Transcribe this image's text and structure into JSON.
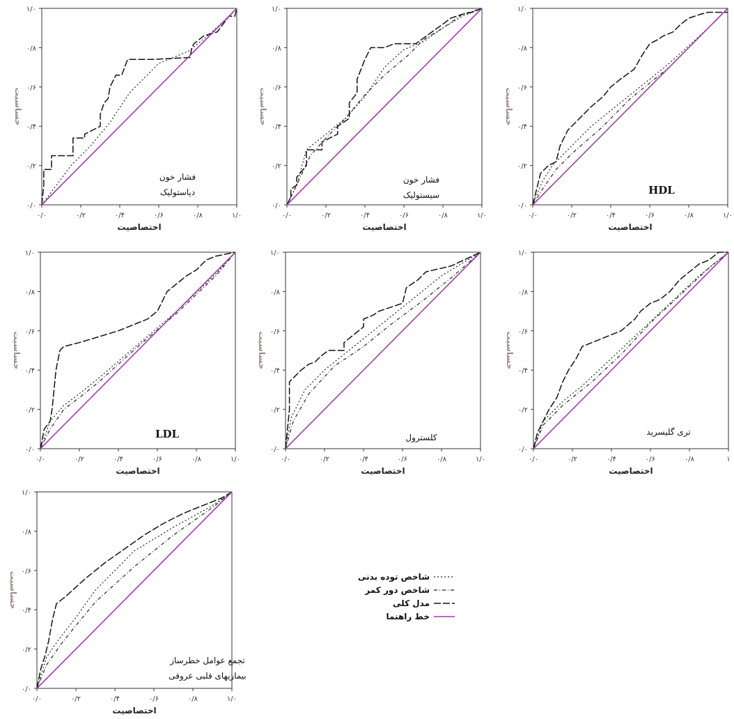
{
  "chart_data": [
    {
      "type": "line",
      "title": [
        "فشار خون",
        "دیاستولیک"
      ],
      "xlabel": "اختصاصیت",
      "ylabel": "حساسیت",
      "xticks": [
        "۰/۰",
        "۰/۲",
        "۰/۴",
        "۰/۶",
        "۰/۸",
        "۱/۰"
      ],
      "yticks": [
        "۰/۰",
        "۰/۲",
        "۰/۴",
        "۰/۶",
        "۰/۸",
        "۱/۰"
      ],
      "xlim": [
        0,
        1
      ],
      "ylim": [
        0,
        1
      ],
      "series": [
        {
          "key": "bmi",
          "x": [
            0,
            0.15,
            0.25,
            0.35,
            0.45,
            0.6,
            0.75,
            0.85,
            0.95,
            1
          ],
          "y": [
            0,
            0.2,
            0.3,
            0.42,
            0.57,
            0.72,
            0.78,
            0.86,
            0.95,
            1
          ]
        },
        {
          "key": "waist",
          "x": [
            0,
            0.2,
            0.4,
            0.6,
            0.8,
            1
          ],
          "y": [
            0,
            0.2,
            0.4,
            0.6,
            0.8,
            1
          ]
        },
        {
          "key": "model",
          "x": [
            0,
            0.01,
            0.01,
            0.05,
            0.05,
            0.16,
            0.16,
            0.22,
            0.22,
            0.3,
            0.3,
            0.32,
            0.34,
            0.35,
            0.36,
            0.38,
            0.41,
            0.44,
            0.44,
            0.57,
            0.57,
            0.76,
            0.77,
            0.78,
            0.83,
            0.9,
            0.96,
            0.99,
            1
          ],
          "y": [
            0,
            0.1,
            0.18,
            0.18,
            0.25,
            0.25,
            0.34,
            0.34,
            0.36,
            0.4,
            0.46,
            0.52,
            0.54,
            0.6,
            0.62,
            0.66,
            0.66,
            0.74,
            0.74,
            0.74,
            0.74,
            0.75,
            0.8,
            0.82,
            0.86,
            0.88,
            0.96,
            0.96,
            1
          ]
        },
        {
          "key": "ref",
          "x": [
            0,
            1
          ],
          "y": [
            0,
            1
          ]
        }
      ]
    },
    {
      "type": "line",
      "title": [
        "فشار خون",
        "سیستولیک"
      ],
      "xlabel": "اختصاصیت",
      "ylabel": "حساسیت",
      "xticks": [
        "۰/۰",
        "۰/۲",
        "۰/۴",
        "۰/۶",
        "۰/۸",
        "۱/۰"
      ],
      "yticks": [
        "۰/۰",
        "۰/۲",
        "۰/۴",
        "۰/۶",
        "۰/۸",
        "۱/۰"
      ],
      "xlim": [
        0,
        1
      ],
      "ylim": [
        0,
        1
      ],
      "series": [
        {
          "key": "bmi",
          "x": [
            0,
            0.05,
            0.1,
            0.2,
            0.3,
            0.4,
            0.5,
            0.6,
            0.7,
            0.8,
            0.9,
            1
          ],
          "y": [
            0,
            0.1,
            0.28,
            0.36,
            0.44,
            0.55,
            0.7,
            0.79,
            0.83,
            0.9,
            0.96,
            1
          ]
        },
        {
          "key": "waist",
          "x": [
            0,
            0.05,
            0.12,
            0.2,
            0.3,
            0.4,
            0.5,
            0.62,
            0.7,
            0.8,
            0.9,
            1
          ],
          "y": [
            0,
            0.1,
            0.25,
            0.34,
            0.44,
            0.56,
            0.66,
            0.76,
            0.84,
            0.9,
            0.97,
            1
          ]
        },
        {
          "key": "model",
          "x": [
            0,
            0.02,
            0.02,
            0.05,
            0.05,
            0.1,
            0.1,
            0.18,
            0.18,
            0.26,
            0.26,
            0.32,
            0.32,
            0.36,
            0.36,
            0.4,
            0.43,
            0.5,
            0.55,
            0.64,
            0.66,
            0.8,
            0.84,
            0.9,
            0.95,
            1
          ],
          "y": [
            0,
            0.04,
            0.08,
            0.1,
            0.14,
            0.2,
            0.28,
            0.28,
            0.32,
            0.36,
            0.4,
            0.44,
            0.52,
            0.57,
            0.64,
            0.74,
            0.8,
            0.8,
            0.82,
            0.82,
            0.82,
            0.92,
            0.95,
            0.97,
            0.98,
            1
          ]
        },
        {
          "key": "ref",
          "x": [
            0,
            1
          ],
          "y": [
            0,
            1
          ]
        }
      ]
    },
    {
      "type": "line",
      "title": "HDL",
      "xlabel": "اختصاصیت",
      "ylabel": "حساسیت",
      "xticks": [
        "۰/۰",
        "۰/۲",
        "۰/۴",
        "۰/۶",
        "۰/۸",
        "۱/۰"
      ],
      "yticks": [
        "۰/۰",
        "۰/۲",
        "۰/۴",
        "۰/۶",
        "۰/۸",
        "۱/۰"
      ],
      "xlim": [
        0,
        1
      ],
      "ylim": [
        0,
        1
      ],
      "series": [
        {
          "key": "bmi",
          "x": [
            0,
            0.05,
            0.1,
            0.2,
            0.3,
            0.5,
            0.7,
            0.9,
            1
          ],
          "y": [
            0,
            0.12,
            0.2,
            0.3,
            0.4,
            0.56,
            0.72,
            0.9,
            1
          ]
        },
        {
          "key": "waist",
          "x": [
            0,
            0.05,
            0.12,
            0.2,
            0.35,
            0.5,
            0.7,
            0.9,
            1
          ],
          "y": [
            0,
            0.08,
            0.18,
            0.26,
            0.39,
            0.54,
            0.7,
            0.9,
            1
          ]
        },
        {
          "key": "model",
          "x": [
            0,
            0.04,
            0.08,
            0.12,
            0.14,
            0.18,
            0.22,
            0.26,
            0.3,
            0.36,
            0.4,
            0.45,
            0.52,
            0.56,
            0.6,
            0.64,
            0.67,
            0.72,
            0.76,
            0.8,
            0.86,
            0.9,
            0.94,
            1
          ],
          "y": [
            0,
            0.16,
            0.2,
            0.22,
            0.3,
            0.38,
            0.42,
            0.46,
            0.5,
            0.55,
            0.6,
            0.64,
            0.69,
            0.76,
            0.82,
            0.84,
            0.86,
            0.88,
            0.92,
            0.95,
            0.97,
            0.98,
            0.98,
            0.98
          ]
        },
        {
          "key": "ref",
          "x": [
            0,
            1
          ],
          "y": [
            0,
            1
          ]
        }
      ]
    },
    {
      "type": "line",
      "title": "LDL",
      "xlabel": "اختصاصیت",
      "ylabel": "حساسیت",
      "xticks": [
        "۰/۰",
        "۰/۲",
        "۰/۴",
        "۰/۶",
        "۰/۸",
        "۱/۰"
      ],
      "yticks": [
        "۰/۰",
        "۰/۲",
        "۰/۴",
        "۰/۶",
        "۰/۸",
        "۱/۰"
      ],
      "xlim": [
        0,
        1
      ],
      "ylim": [
        0,
        1
      ],
      "series": [
        {
          "key": "bmi",
          "x": [
            0,
            0.05,
            0.12,
            0.2,
            0.3,
            0.5,
            0.7,
            0.9,
            1
          ],
          "y": [
            0,
            0.14,
            0.22,
            0.28,
            0.36,
            0.53,
            0.7,
            0.89,
            1
          ]
        },
        {
          "key": "waist",
          "x": [
            0,
            0.05,
            0.12,
            0.2,
            0.3,
            0.5,
            0.7,
            0.9,
            1
          ],
          "y": [
            0,
            0.1,
            0.2,
            0.26,
            0.34,
            0.52,
            0.69,
            0.88,
            1
          ]
        },
        {
          "key": "model",
          "x": [
            0,
            0.02,
            0.05,
            0.06,
            0.08,
            0.1,
            0.12,
            0.2,
            0.3,
            0.4,
            0.45,
            0.5,
            0.55,
            0.6,
            0.65,
            0.7,
            0.75,
            0.8,
            0.85,
            0.9,
            1
          ],
          "y": [
            0,
            0.1,
            0.14,
            0.2,
            0.4,
            0.5,
            0.52,
            0.54,
            0.57,
            0.6,
            0.62,
            0.64,
            0.66,
            0.7,
            0.8,
            0.84,
            0.88,
            0.91,
            0.96,
            0.98,
            1
          ]
        },
        {
          "key": "ref",
          "x": [
            0,
            1
          ],
          "y": [
            0,
            1
          ]
        }
      ]
    },
    {
      "type": "line",
      "title": "کلسترول",
      "xlabel": "اختصاصیت",
      "ylabel": "حساسیت",
      "xticks": [
        "۰/۰",
        "۰/۲",
        "۰/۴",
        "۰/۶",
        "۰/۸",
        "۱/۰"
      ],
      "yticks": [
        "۰/۰",
        "۰/۲",
        "۰/۴",
        "۰/۶",
        "۰/۸",
        "۱/۰"
      ],
      "xlim": [
        0,
        1
      ],
      "ylim": [
        0,
        1
      ],
      "series": [
        {
          "key": "bmi",
          "x": [
            0,
            0.03,
            0.1,
            0.2,
            0.3,
            0.45,
            0.6,
            0.8,
            1
          ],
          "y": [
            0,
            0.16,
            0.3,
            0.4,
            0.48,
            0.6,
            0.72,
            0.88,
            1
          ]
        },
        {
          "key": "waist",
          "x": [
            0,
            0.04,
            0.12,
            0.25,
            0.4,
            0.55,
            0.7,
            0.85,
            1
          ],
          "y": [
            0,
            0.14,
            0.28,
            0.42,
            0.52,
            0.64,
            0.75,
            0.87,
            1
          ]
        },
        {
          "key": "model",
          "x": [
            0,
            0.02,
            0.02,
            0.05,
            0.08,
            0.12,
            0.15,
            0.18,
            0.22,
            0.3,
            0.3,
            0.35,
            0.4,
            0.4,
            0.45,
            0.48,
            0.6,
            0.62,
            0.68,
            0.72,
            0.85,
            1
          ],
          "y": [
            0,
            0.2,
            0.34,
            0.37,
            0.4,
            0.43,
            0.44,
            0.47,
            0.5,
            0.5,
            0.54,
            0.58,
            0.62,
            0.66,
            0.68,
            0.7,
            0.74,
            0.82,
            0.86,
            0.9,
            0.93,
            1
          ]
        },
        {
          "key": "ref",
          "x": [
            0,
            1
          ],
          "y": [
            0,
            1
          ]
        }
      ]
    },
    {
      "type": "line",
      "title": "تری گلیسرید",
      "xlabel": "اختصاصیت",
      "ylabel": "حساسیت",
      "xticks": [
        "۰/۰",
        "۰/۲",
        "۰/۴",
        "۰/۶",
        "۰/۸",
        "۱"
      ],
      "yticks": [
        "۰/۰",
        "۰/۲",
        "۰/۴",
        "۰/۶",
        "۰/۸",
        "۱/۰"
      ],
      "xlim": [
        0,
        1
      ],
      "ylim": [
        0,
        1
      ],
      "series": [
        {
          "key": "bmi",
          "x": [
            0,
            0.05,
            0.15,
            0.25,
            0.4,
            0.55,
            0.7,
            0.85,
            1
          ],
          "y": [
            0,
            0.14,
            0.24,
            0.32,
            0.46,
            0.6,
            0.74,
            0.88,
            1
          ]
        },
        {
          "key": "waist",
          "x": [
            0,
            0.05,
            0.15,
            0.3,
            0.45,
            0.6,
            0.75,
            0.9,
            1
          ],
          "y": [
            0,
            0.12,
            0.22,
            0.34,
            0.48,
            0.64,
            0.78,
            0.92,
            1
          ]
        },
        {
          "key": "model",
          "x": [
            0,
            0.02,
            0.05,
            0.08,
            0.12,
            0.15,
            0.18,
            0.22,
            0.25,
            0.3,
            0.35,
            0.4,
            0.45,
            0.52,
            0.55,
            0.6,
            0.65,
            0.7,
            0.75,
            0.8,
            0.85,
            0.9,
            0.95,
            1
          ],
          "y": [
            0,
            0.08,
            0.14,
            0.2,
            0.26,
            0.34,
            0.4,
            0.46,
            0.52,
            0.54,
            0.56,
            0.58,
            0.6,
            0.66,
            0.7,
            0.74,
            0.76,
            0.8,
            0.86,
            0.9,
            0.94,
            0.96,
            1,
            1
          ]
        },
        {
          "key": "ref",
          "x": [
            0,
            1
          ],
          "y": [
            0,
            1
          ]
        }
      ]
    },
    {
      "type": "line",
      "title": [
        "تجمع عوامل خطرساز",
        "بیماریهای قلبی عروقی"
      ],
      "xlabel": "اختصاصیت",
      "ylabel": "حساسیت",
      "xticks": [
        "۰/۰",
        "۰/۲",
        "۰/۴",
        "۰/۶",
        "۰/۸",
        "۱/۰"
      ],
      "yticks": [
        "۰/۰",
        "۰/۲",
        "۰/۴",
        "۰/۶",
        "۰/۸",
        "۱/۰"
      ],
      "xlim": [
        0,
        1
      ],
      "ylim": [
        0,
        1
      ],
      "series": [
        {
          "key": "bmi",
          "x": [
            0,
            0.05,
            0.12,
            0.2,
            0.3,
            0.5,
            0.7,
            0.9,
            1
          ],
          "y": [
            0,
            0.16,
            0.26,
            0.36,
            0.5,
            0.7,
            0.82,
            0.93,
            1
          ]
        },
        {
          "key": "waist",
          "x": [
            0,
            0.05,
            0.12,
            0.2,
            0.3,
            0.5,
            0.7,
            0.9,
            1
          ],
          "y": [
            0,
            0.12,
            0.22,
            0.32,
            0.44,
            0.62,
            0.78,
            0.92,
            1
          ]
        },
        {
          "key": "model",
          "x": [
            0,
            0.02,
            0.04,
            0.06,
            0.08,
            0.1,
            0.15,
            0.25,
            0.35,
            0.45,
            0.55,
            0.65,
            0.75,
            0.85,
            0.95,
            1
          ],
          "y": [
            0,
            0.1,
            0.16,
            0.24,
            0.35,
            0.43,
            0.47,
            0.56,
            0.64,
            0.71,
            0.78,
            0.84,
            0.89,
            0.93,
            0.97,
            1
          ]
        },
        {
          "key": "ref",
          "x": [
            0,
            1
          ],
          "y": [
            0,
            1
          ]
        }
      ]
    }
  ],
  "legend": {
    "items": [
      {
        "key": "bmi",
        "label": "شاخص توده بدنی"
      },
      {
        "key": "waist",
        "label": "شاخص دور کمر"
      },
      {
        "key": "model",
        "label": "مدل کلی"
      },
      {
        "key": "ref",
        "label": "خط راهنما"
      }
    ]
  },
  "styles": {
    "bmi": {
      "color": "#222222",
      "dash": "2,3",
      "width": 1.2
    },
    "waist": {
      "color": "#222222",
      "dash": "5,3,1,3",
      "width": 1.2
    },
    "model": {
      "color": "#111111",
      "dash": "10,3",
      "width": 1.5
    },
    "ref": {
      "color": "#9b3fa5",
      "dash": "",
      "width": 1.6
    }
  }
}
